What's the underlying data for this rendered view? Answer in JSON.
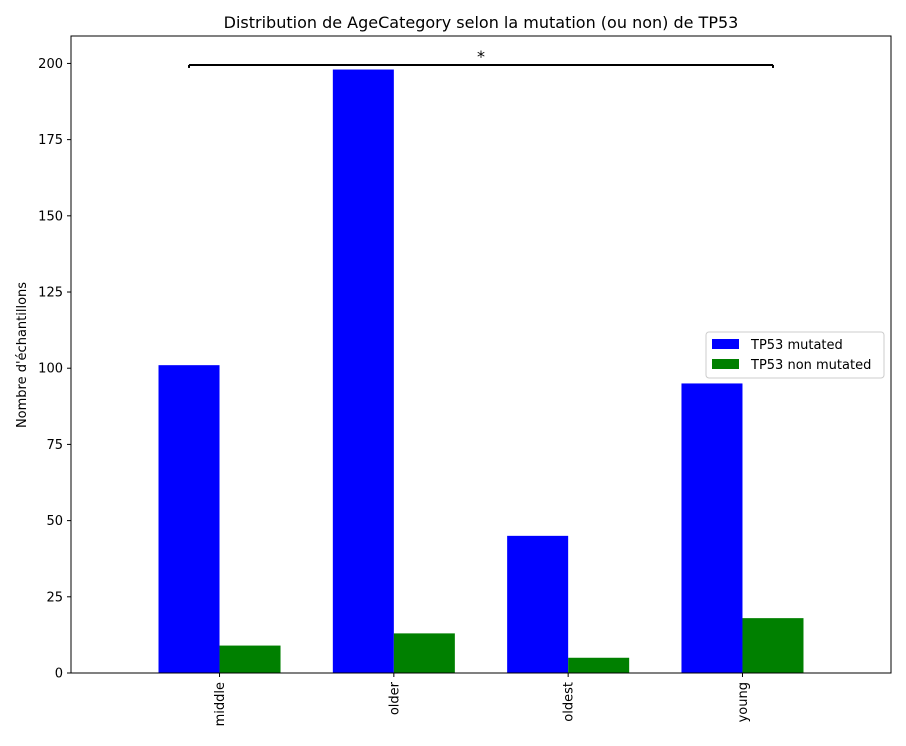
{
  "chart_data": {
    "type": "bar",
    "title": "Distribution de AgeCategory selon la mutation (ou non) de TP53",
    "xlabel": "",
    "ylabel": "Nombre d'échantillons",
    "categories": [
      "middle",
      "older",
      "oldest",
      "young"
    ],
    "series": [
      {
        "name": "TP53 mutated",
        "color": "#0000ff",
        "values": [
          101,
          198,
          45,
          95
        ]
      },
      {
        "name": "TP53 non mutated",
        "color": "#008000",
        "values": [
          9,
          13,
          5,
          18
        ]
      }
    ],
    "ylim": [
      0,
      209
    ],
    "yticks": [
      0,
      25,
      50,
      75,
      100,
      125,
      150,
      175,
      200
    ],
    "grid": false,
    "legend_position": "center-right",
    "annotation": {
      "text": "*",
      "y": 199.5,
      "from_category": "middle",
      "to_category": "young"
    }
  }
}
